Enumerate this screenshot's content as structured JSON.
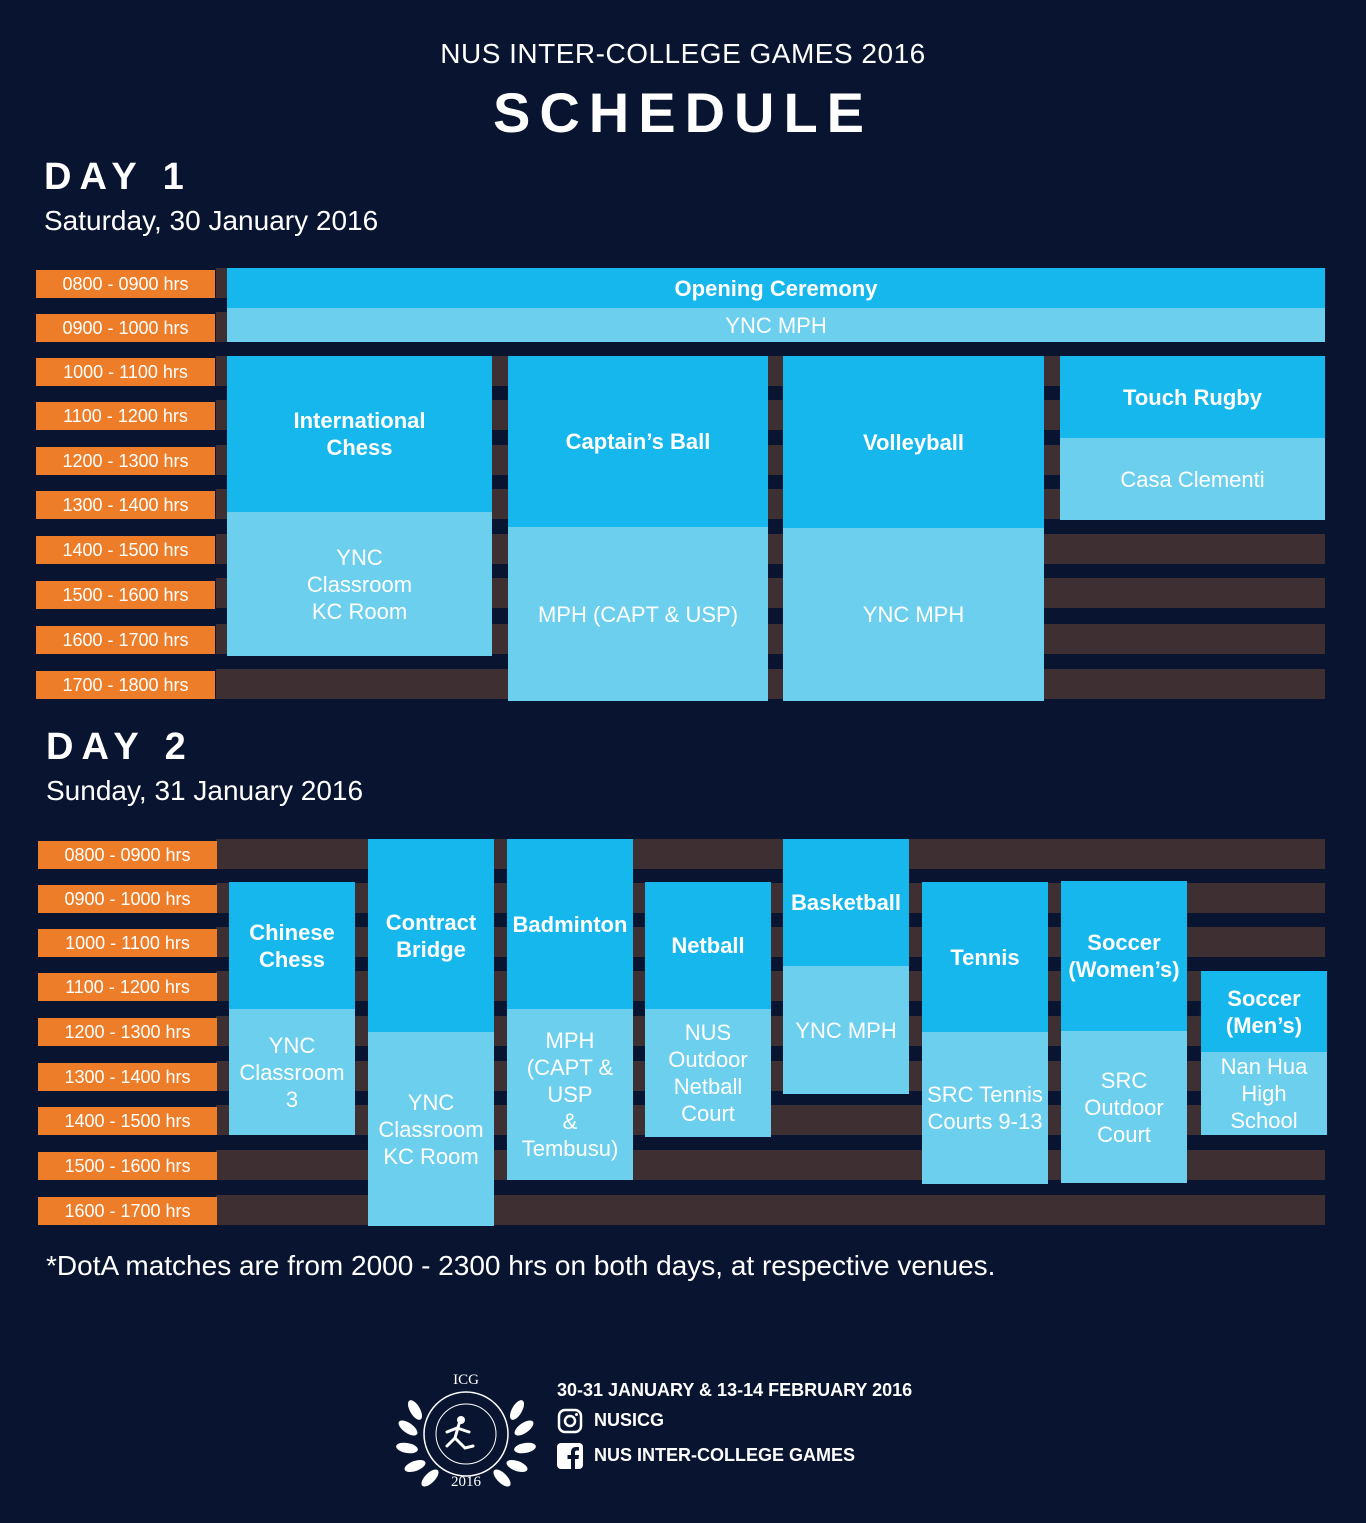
{
  "header": {
    "subtitle": "NUS INTER-COLLEGE GAMES 2016",
    "title": "SCHEDULE"
  },
  "day1": {
    "heading": "DAY 1",
    "date": "Saturday, 30 January 2016",
    "slots": [
      "0800 - 0900 hrs",
      "0900 - 1000 hrs",
      "1000 - 1100 hrs",
      "1100 - 1200 hrs",
      "1200 - 1300 hrs",
      "1300 - 1400 hrs",
      "1400 - 1500 hrs",
      "1500 - 1600 hrs",
      "1600 - 1700 hrs",
      "1700 - 1800 hrs"
    ],
    "events": [
      {
        "name": "Opening Ceremony",
        "venue": "YNC MPH"
      },
      {
        "name": "International\nChess",
        "venue": "YNC\nClassroom\nKC Room"
      },
      {
        "name": "Captain’s Ball",
        "venue": "MPH (CAPT & USP)"
      },
      {
        "name": "Volleyball",
        "venue": "YNC MPH"
      },
      {
        "name": "Touch Rugby",
        "venue": "Casa Clementi"
      }
    ]
  },
  "day2": {
    "heading": "DAY 2",
    "date": "Sunday, 31 January 2016",
    "slots": [
      "0800 - 0900 hrs",
      "0900 - 1000 hrs",
      "1000 - 1100 hrs",
      "1100 - 1200 hrs",
      "1200 - 1300 hrs",
      "1300 - 1400 hrs",
      "1400 - 1500 hrs",
      "1500 - 1600 hrs",
      "1600 - 1700 hrs"
    ],
    "events": [
      {
        "name": "Chinese\nChess",
        "venue": "YNC\nClassroom\n3"
      },
      {
        "name": "Contract\nBridge",
        "venue": "YNC\nClassroom\nKC Room"
      },
      {
        "name": "Badminton",
        "venue": "MPH\n(CAPT &\nUSP\n&\nTembusu)"
      },
      {
        "name": "Netball",
        "venue": "NUS\nOutdoor\nNetball\nCourt"
      },
      {
        "name": "Basketball",
        "venue": "YNC MPH"
      },
      {
        "name": "Tennis",
        "venue": "SRC Tennis\nCourts 9-13"
      },
      {
        "name": "Soccer\n(Women’s)",
        "venue": "SRC\nOutdoor\nCourt"
      },
      {
        "name": "Soccer\n(Men’s)",
        "venue": "Nan Hua\nHigh\nSchool"
      }
    ]
  },
  "note": "*DotA matches are from 2000 - 2300 hrs on both days, at respective venues.",
  "footer": {
    "logo_icon": "icg-laurel-logo",
    "logo_text_top": "ICG",
    "logo_text_year": "2016",
    "dates": "30-31 JANUARY & 13-14 FEBRUARY 2016",
    "instagram_icon": "instagram-icon",
    "instagram": "NUSICG",
    "facebook_icon": "facebook-icon",
    "facebook": "NUS INTER-COLLEGE GAMES"
  },
  "colors": {
    "background": "#091530",
    "time_slot": "#ee7d29",
    "event": "#15b7ec",
    "venue": "#6dcfee",
    "empty_row": "#3e2f32"
  }
}
